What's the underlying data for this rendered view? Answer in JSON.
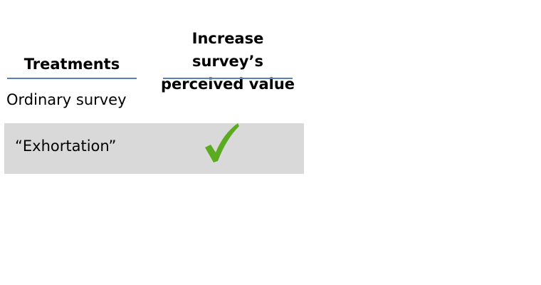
{
  "table": {
    "headers": {
      "treatments": "Treatments",
      "value_line1": "Increase survey’s",
      "value_line2": "perceived value"
    },
    "rows": [
      {
        "label": "Ordinary survey",
        "increase_value": false
      },
      {
        "label": "“Exhortation”",
        "increase_value": true
      }
    ]
  },
  "colors": {
    "rule": "#5b7fae",
    "band": "#d9d9d9",
    "check": "#5aab1f"
  },
  "icons": {
    "check": "checkmark-icon"
  }
}
